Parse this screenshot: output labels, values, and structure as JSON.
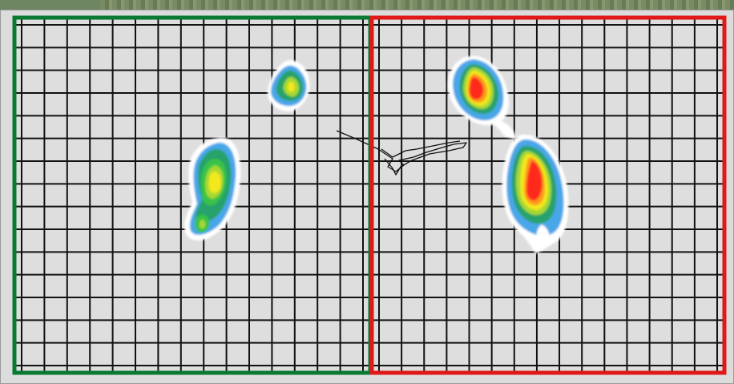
{
  "plates": [
    {
      "id": "left-plate",
      "border_color": "#0a7a32",
      "cols": 15,
      "rows": 15
    },
    {
      "id": "right-plate",
      "border_color": "#e01818",
      "cols": 15,
      "rows": 15
    }
  ],
  "colors": {
    "grid_line": "#111111",
    "plate_fill": "#dedede",
    "window_bg": "#dcdcdc",
    "pressure_scale": [
      "#ffffff",
      "#4aa6e8",
      "#2f86c8",
      "#27a26a",
      "#38c24a",
      "#a8d832",
      "#f2e81e",
      "#ff9a1a",
      "#ff2a1a",
      "#e01010"
    ]
  },
  "icons": [
    "pressure-heatmap-icon"
  ]
}
